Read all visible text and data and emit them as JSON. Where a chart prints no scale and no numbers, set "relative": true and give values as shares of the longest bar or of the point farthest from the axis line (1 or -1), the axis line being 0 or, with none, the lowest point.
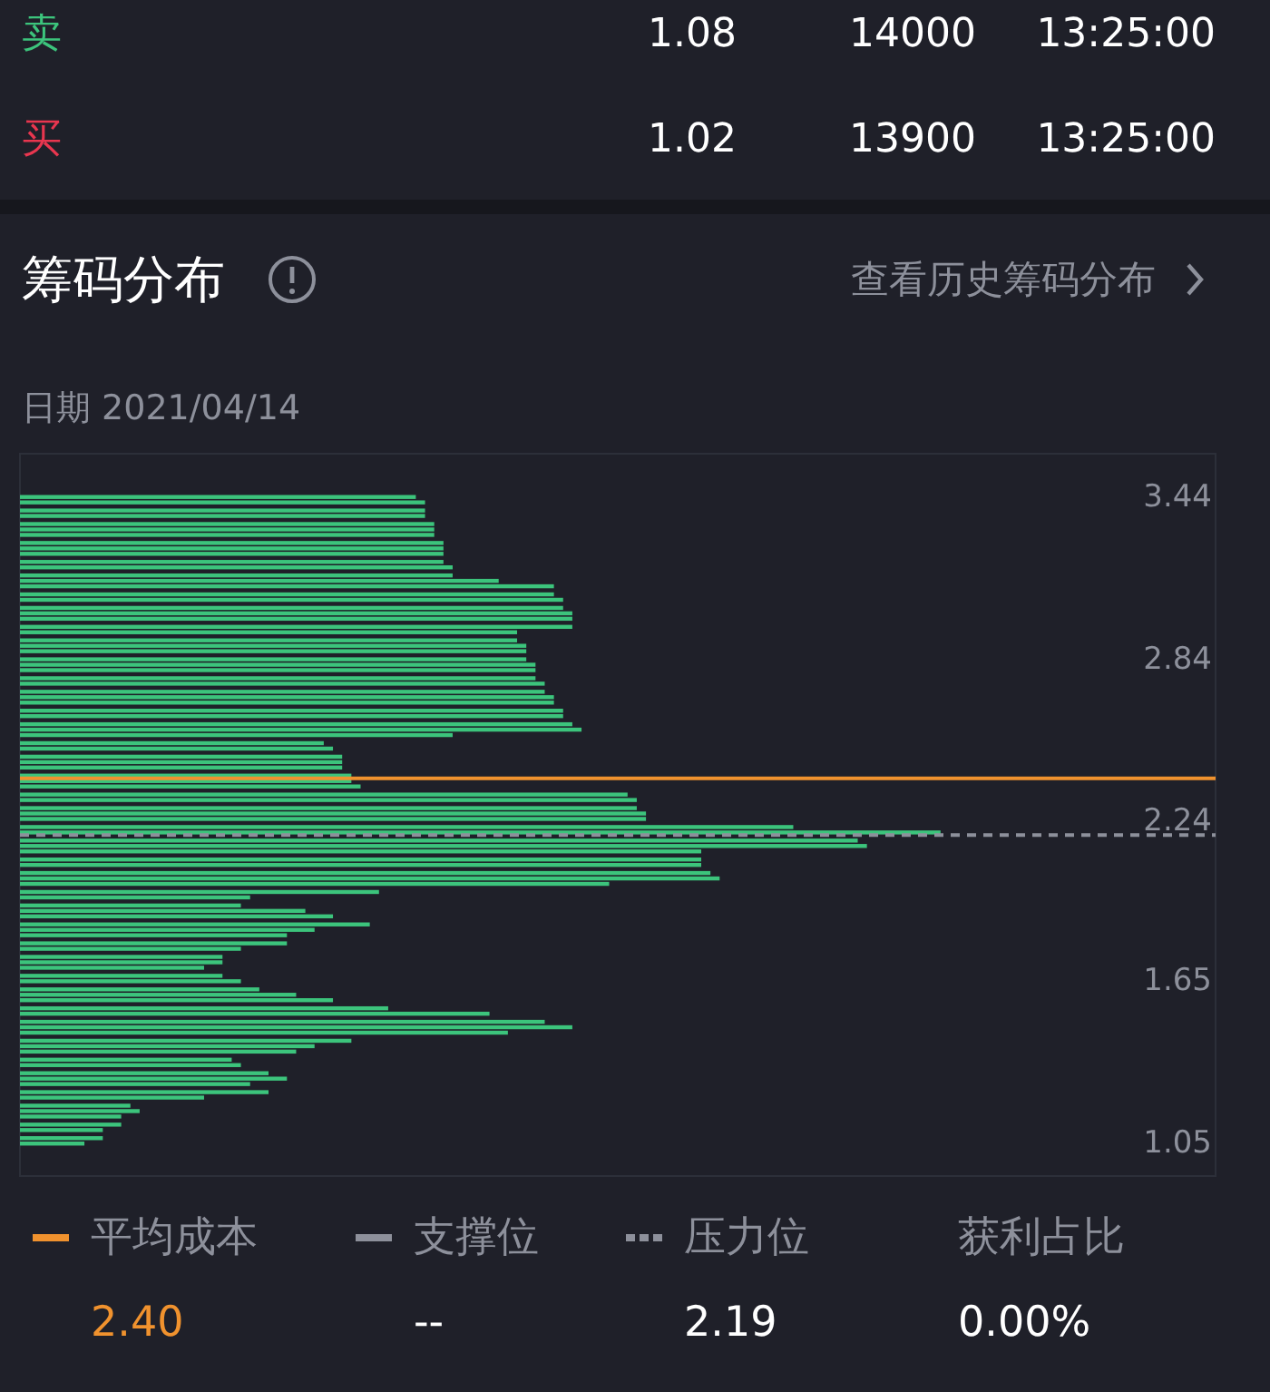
{
  "chart_data": {
    "type": "bar",
    "orientation": "horizontal",
    "relative": true,
    "title": "筹码分布",
    "subtitle": "日期 2021/04/14",
    "color": "#3cc47c",
    "x": [
      3.44,
      3.42,
      3.39,
      3.37,
      3.34,
      3.32,
      3.3,
      3.27,
      3.25,
      3.23,
      3.2,
      3.18,
      3.15,
      3.13,
      3.11,
      3.08,
      3.06,
      3.03,
      3.01,
      2.99,
      2.96,
      2.94,
      2.91,
      2.89,
      2.87,
      2.84,
      2.82,
      2.8,
      2.77,
      2.75,
      2.72,
      2.7,
      2.68,
      2.65,
      2.63,
      2.6,
      2.58,
      2.56,
      2.53,
      2.51,
      2.48,
      2.46,
      2.44,
      2.41,
      2.39,
      2.37,
      2.34,
      2.32,
      2.29,
      2.27,
      2.25,
      2.22,
      2.2,
      2.17,
      2.15,
      2.13,
      2.1,
      2.08,
      2.05,
      2.03,
      2.01,
      1.98,
      1.96,
      1.93,
      1.91,
      1.89,
      1.86,
      1.84,
      1.82,
      1.79,
      1.77,
      1.74,
      1.72,
      1.7,
      1.67,
      1.65,
      1.62,
      1.6,
      1.58,
      1.55,
      1.53,
      1.5,
      1.48,
      1.46,
      1.43,
      1.41,
      1.39,
      1.36,
      1.34,
      1.31,
      1.29,
      1.27,
      1.24,
      1.22,
      1.19,
      1.17,
      1.15,
      1.12,
      1.1,
      1.07,
      1.05
    ],
    "values": [
      0.43,
      0.44,
      0.44,
      0.44,
      0.45,
      0.45,
      0.45,
      0.46,
      0.46,
      0.46,
      0.46,
      0.47,
      0.47,
      0.52,
      0.58,
      0.58,
      0.59,
      0.59,
      0.6,
      0.6,
      0.6,
      0.54,
      0.54,
      0.55,
      0.55,
      0.55,
      0.56,
      0.56,
      0.56,
      0.57,
      0.57,
      0.58,
      0.58,
      0.59,
      0.59,
      0.6,
      0.61,
      0.47,
      0.33,
      0.34,
      0.35,
      0.35,
      0.35,
      0.36,
      0.36,
      0.37,
      0.66,
      0.67,
      0.67,
      0.68,
      0.68,
      0.84,
      1,
      0.91,
      0.92,
      0.74,
      0.74,
      0.74,
      0.75,
      0.76,
      0.64,
      0.39,
      0.25,
      0.24,
      0.31,
      0.34,
      0.38,
      0.32,
      0.29,
      0.29,
      0.24,
      0.22,
      0.22,
      0.2,
      0.22,
      0.24,
      0.26,
      0.3,
      0.34,
      0.4,
      0.51,
      0.57,
      0.6,
      0.53,
      0.36,
      0.32,
      0.3,
      0.23,
      0.24,
      0.27,
      0.29,
      0.25,
      0.27,
      0.2,
      0.12,
      0.13,
      0.11,
      0.11,
      0.09,
      0.09,
      0.07
    ],
    "ylim": [
      0.93,
      3.6
    ],
    "yticks": [
      1.05,
      1.65,
      2.24,
      2.84,
      3.44
    ],
    "ref_lines": [
      {
        "axis": "y",
        "value": 2.4,
        "label": "平均成本",
        "color": "#f0922e",
        "line_style": "solid"
      },
      {
        "axis": "y",
        "value": 2.19,
        "label": "压力位",
        "color": "#8d909b",
        "line_style": "dashed"
      }
    ],
    "legend": "bottom",
    "annotations": [
      "卖",
      "1.08",
      "14000",
      "13:25:00",
      "买",
      "1.02",
      "13900",
      "13:25:00",
      "查看历史筹码分布",
      "支撑位",
      "--",
      "获利占比",
      "0.00%",
      "2.40",
      "2.19"
    ]
  }
}
